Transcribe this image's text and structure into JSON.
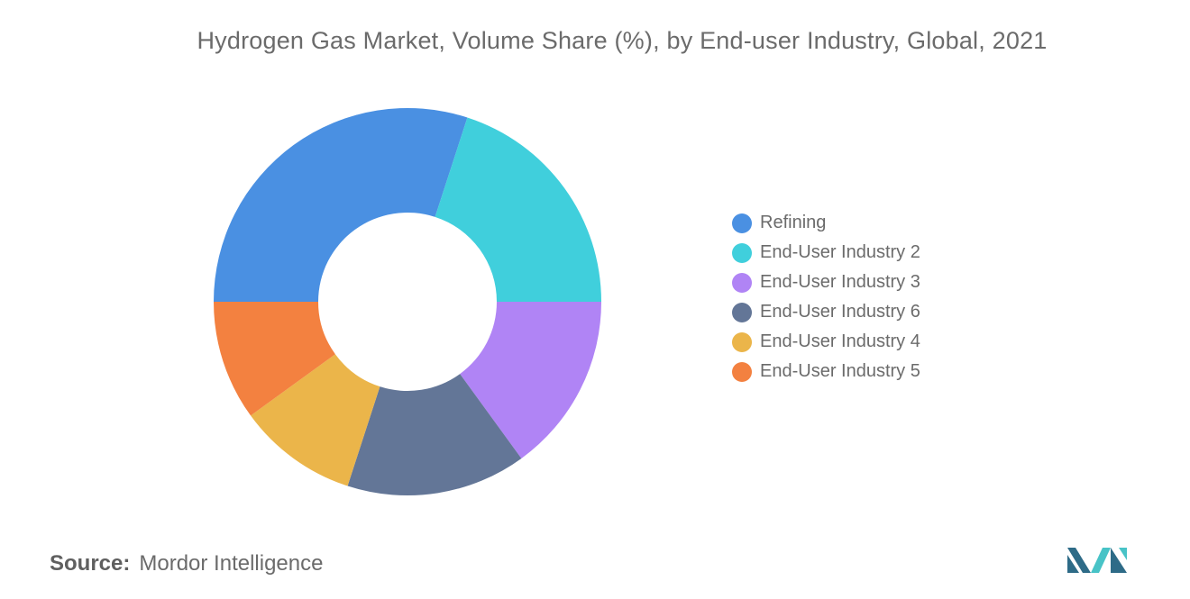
{
  "chart_data": {
    "type": "pie",
    "title": "Hydrogen Gas Market, Volume Share (%), by End-user Industry, Global, 2021",
    "categories": [
      "Refining",
      "End-User Industry 2",
      "End-User Industry 3",
      "End-User Industry 6",
      "End-User Industry 4",
      "End-User Industry 5"
    ],
    "values": [
      30,
      20,
      15,
      15,
      10,
      10
    ],
    "colors": [
      "#4a90e2",
      "#40cfdc",
      "#b084f5",
      "#637697",
      "#ebb54a",
      "#f38140"
    ],
    "donut": true,
    "legend_position": "right"
  },
  "source": {
    "key": "Source:",
    "value": "Mordor Intelligence"
  },
  "logo": {
    "icon": "mordor-intelligence-logo",
    "colors": [
      "#2e6b87",
      "#48c3c7"
    ]
  }
}
